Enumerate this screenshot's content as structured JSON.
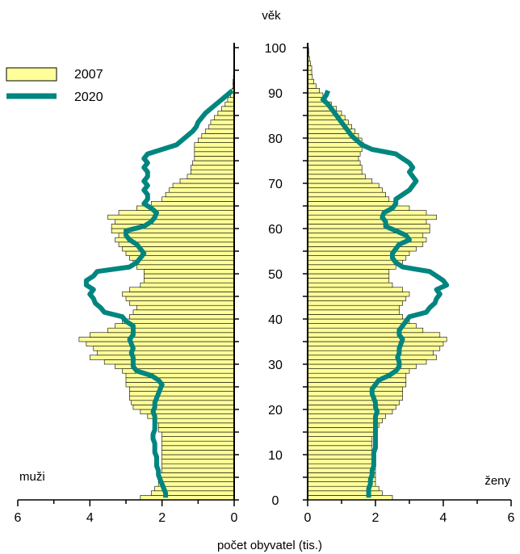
{
  "chart_data": {
    "type": "bar",
    "orientation": "horizontal-population-pyramid",
    "ylabel": "věk",
    "xlabel": "počet obyvatel (tis.)",
    "left_label": "muži",
    "right_label": "ženy",
    "legend": {
      "placement": "top-left",
      "entries": [
        {
          "name": "2007",
          "kind": "bar",
          "color": "#ffff99",
          "stroke": "#000000"
        },
        {
          "name": "2020",
          "kind": "line",
          "color": "#00857f"
        }
      ]
    },
    "age_ticks": [
      0,
      10,
      20,
      30,
      40,
      50,
      60,
      70,
      80,
      90,
      100
    ],
    "x_ticks_left": [
      "6",
      "4",
      "2",
      "0"
    ],
    "x_ticks_right": [
      "0",
      "2",
      "4",
      "6"
    ],
    "xlim": [
      0,
      6
    ],
    "ylim": [
      0,
      100
    ],
    "ages": [
      0,
      1,
      2,
      3,
      4,
      5,
      6,
      7,
      8,
      9,
      10,
      11,
      12,
      13,
      14,
      15,
      16,
      17,
      18,
      19,
      20,
      21,
      22,
      23,
      24,
      25,
      26,
      27,
      28,
      29,
      30,
      31,
      32,
      33,
      34,
      35,
      36,
      37,
      38,
      39,
      40,
      41,
      42,
      43,
      44,
      45,
      46,
      47,
      48,
      49,
      50,
      51,
      52,
      53,
      54,
      55,
      56,
      57,
      58,
      59,
      60,
      61,
      62,
      63,
      64,
      65,
      66,
      67,
      68,
      69,
      70,
      71,
      72,
      73,
      74,
      75,
      76,
      77,
      78,
      79,
      80,
      81,
      82,
      83,
      84,
      85,
      86,
      87,
      88,
      89,
      90,
      91,
      92,
      93,
      94,
      95,
      96,
      97,
      98,
      99,
      100
    ],
    "series": [
      {
        "name": "2007",
        "side": "male",
        "values": [
          2.6,
          2.3,
          2.2,
          2.1,
          2.1,
          2.1,
          2.0,
          2.0,
          2.0,
          2.0,
          2.0,
          2.0,
          2.0,
          2.0,
          2.0,
          2.1,
          2.1,
          2.2,
          2.4,
          2.6,
          2.8,
          2.85,
          2.9,
          2.9,
          2.9,
          3.0,
          3.0,
          3.0,
          3.1,
          3.3,
          3.6,
          4.0,
          3.8,
          3.9,
          4.1,
          4.3,
          4.0,
          3.5,
          3.3,
          3.1,
          2.9,
          2.8,
          2.7,
          2.9,
          3.0,
          3.1,
          2.9,
          2.6,
          2.5,
          2.5,
          2.5,
          2.7,
          2.8,
          2.9,
          3.0,
          3.1,
          3.2,
          3.3,
          3.2,
          3.4,
          3.4,
          3.3,
          3.5,
          3.2,
          2.7,
          2.3,
          2.0,
          1.9,
          1.8,
          1.7,
          1.5,
          1.3,
          1.2,
          1.2,
          1.15,
          1.1,
          1.1,
          1.1,
          1.1,
          1.0,
          0.9,
          0.8,
          0.7,
          0.65,
          0.55,
          0.45,
          0.35,
          0.25,
          0.18,
          0.1,
          0.06,
          0.04,
          0.03,
          0.02,
          0.01,
          0.01,
          0.0,
          0.0,
          0.0,
          0.0,
          0.0
        ]
      },
      {
        "name": "2007",
        "side": "female",
        "values": [
          2.5,
          2.2,
          2.1,
          2.0,
          2.0,
          2.0,
          2.0,
          1.9,
          1.9,
          1.9,
          1.9,
          1.9,
          1.9,
          1.9,
          2.0,
          2.0,
          2.1,
          2.2,
          2.3,
          2.5,
          2.6,
          2.7,
          2.8,
          2.8,
          2.8,
          2.9,
          2.9,
          2.9,
          3.0,
          3.2,
          3.5,
          3.8,
          3.7,
          3.9,
          4.0,
          4.1,
          3.9,
          3.4,
          3.2,
          3.0,
          2.8,
          2.7,
          2.7,
          2.8,
          2.9,
          3.0,
          2.8,
          2.5,
          2.4,
          2.4,
          2.4,
          2.6,
          2.8,
          2.9,
          3.0,
          3.2,
          3.4,
          3.5,
          3.4,
          3.6,
          3.6,
          3.5,
          3.8,
          3.5,
          3.0,
          2.6,
          2.4,
          2.3,
          2.2,
          2.1,
          1.9,
          1.7,
          1.6,
          1.6,
          1.55,
          1.5,
          1.55,
          1.6,
          1.65,
          1.6,
          1.5,
          1.4,
          1.3,
          1.2,
          1.1,
          1.0,
          0.85,
          0.7,
          0.55,
          0.45,
          0.35,
          0.25,
          0.18,
          0.14,
          0.12,
          0.12,
          0.08,
          0.06,
          0.04,
          0.03,
          0.02
        ]
      },
      {
        "name": "2020",
        "side": "male",
        "type": "line",
        "values": [
          1.9,
          1.9,
          1.95,
          2.0,
          2.05,
          2.1,
          2.1,
          2.15,
          2.15,
          2.15,
          2.2,
          2.2,
          2.2,
          2.25,
          2.25,
          2.2,
          2.2,
          2.2,
          2.2,
          2.25,
          2.2,
          2.2,
          2.15,
          2.1,
          2.05,
          2.0,
          2.1,
          2.3,
          2.7,
          2.8,
          2.8,
          2.8,
          2.85,
          2.8,
          2.85,
          2.9,
          2.8,
          2.8,
          2.8,
          3.0,
          3.1,
          3.6,
          3.7,
          3.85,
          3.9,
          4.0,
          3.9,
          4.1,
          4.1,
          3.9,
          3.8,
          2.9,
          2.7,
          2.6,
          2.5,
          2.6,
          2.7,
          2.9,
          3.0,
          3.0,
          2.5,
          2.3,
          2.2,
          2.15,
          2.3,
          2.5,
          2.4,
          2.4,
          2.5,
          2.4,
          2.5,
          2.4,
          2.4,
          2.5,
          2.4,
          2.5,
          2.4,
          2.0,
          1.6,
          1.45,
          1.3,
          1.15,
          1.05,
          1.0,
          0.9,
          0.8,
          0.65,
          0.5,
          0.35,
          0.2,
          0.05
        ]
      },
      {
        "name": "2020",
        "side": "female",
        "type": "line",
        "values": [
          1.8,
          1.8,
          1.8,
          1.85,
          1.85,
          1.9,
          1.9,
          1.95,
          1.95,
          1.95,
          1.95,
          2.0,
          2.0,
          2.0,
          2.0,
          2.0,
          2.0,
          2.0,
          2.0,
          2.05,
          2.0,
          2.0,
          1.95,
          1.9,
          1.9,
          2.0,
          2.1,
          2.4,
          2.6,
          2.7,
          2.7,
          2.65,
          2.7,
          2.7,
          2.75,
          2.8,
          2.7,
          2.7,
          2.8,
          2.9,
          3.0,
          3.5,
          3.6,
          3.75,
          3.8,
          3.9,
          3.8,
          4.1,
          4.0,
          3.8,
          3.6,
          2.8,
          2.6,
          2.5,
          2.5,
          2.6,
          2.7,
          3.0,
          2.9,
          2.6,
          2.3,
          2.3,
          2.2,
          2.25,
          2.5,
          2.6,
          2.6,
          2.8,
          3.0,
          3.1,
          3.2,
          3.1,
          3.0,
          3.1,
          3.0,
          2.8,
          2.6,
          1.9,
          1.6,
          1.45,
          1.3,
          1.2,
          1.1,
          1.0,
          0.9,
          0.8,
          0.7,
          0.6,
          0.45,
          0.55,
          0.6
        ]
      }
    ]
  }
}
